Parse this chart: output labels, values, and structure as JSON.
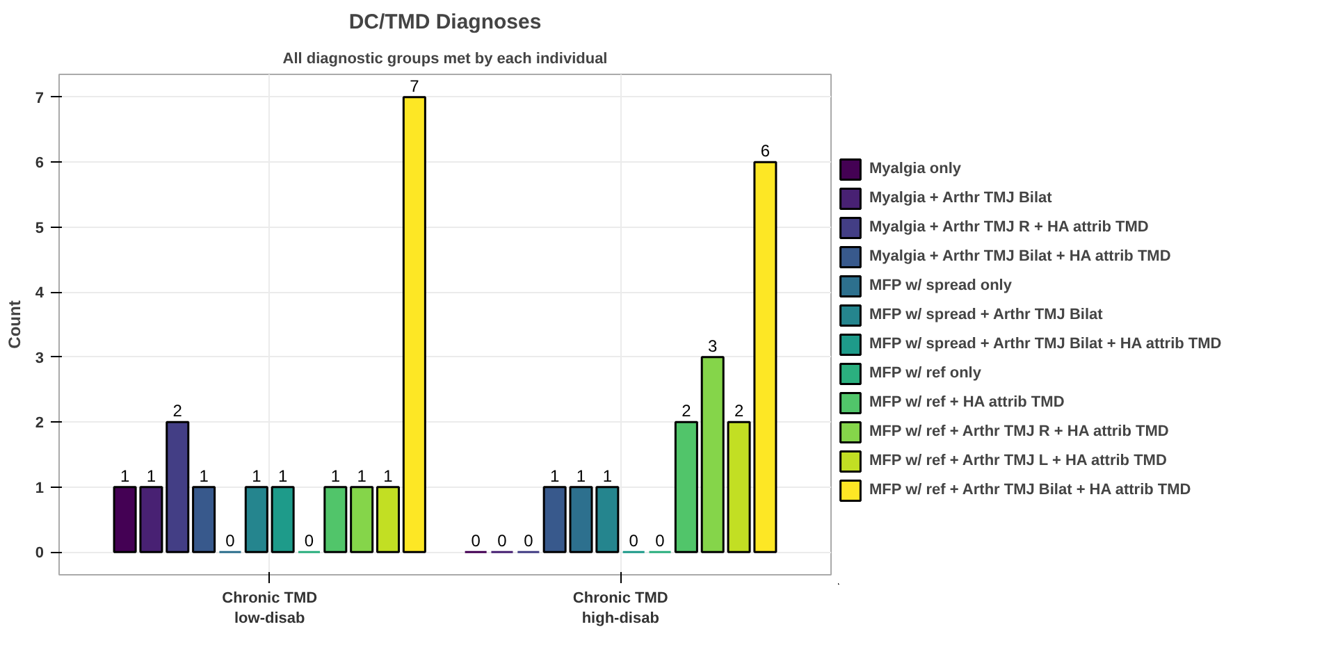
{
  "chart_data": {
    "type": "bar",
    "title": "DC/TMD Diagnoses",
    "subtitle": "All diagnostic groups met by each individual",
    "ylabel": "Count",
    "categories": [
      "Chronic TMD\nlow-disab",
      "Chronic TMD\nhigh-disab"
    ],
    "series": [
      {
        "name": "Myalgia only",
        "color": "#440154",
        "values": [
          1,
          0
        ]
      },
      {
        "name": "Myalgia + Arthr TMJ Bilat",
        "color": "#482173",
        "values": [
          1,
          0
        ]
      },
      {
        "name": "Myalgia + Arthr TMJ R + HA attrib TMD",
        "color": "#433e85",
        "values": [
          2,
          0
        ]
      },
      {
        "name": "Myalgia + Arthr TMJ Bilat + HA attrib TMD",
        "color": "#38598c",
        "values": [
          1,
          1
        ]
      },
      {
        "name": "MFP w/ spread only",
        "color": "#2d708e",
        "values": [
          0,
          1
        ]
      },
      {
        "name": "MFP w/ spread + Arthr TMJ Bilat",
        "color": "#25858e",
        "values": [
          1,
          1
        ]
      },
      {
        "name": "MFP w/ spread + Arthr TMJ Bilat + HA attrib TMD",
        "color": "#1e9b8a",
        "values": [
          1,
          0
        ]
      },
      {
        "name": "MFP w/ ref only",
        "color": "#2bb07f",
        "values": [
          0,
          0
        ]
      },
      {
        "name": "MFP w/ ref + HA attrib TMD",
        "color": "#51c56a",
        "values": [
          1,
          2
        ]
      },
      {
        "name": "MFP w/ ref + Arthr TMJ R + HA attrib TMD",
        "color": "#85d54a",
        "values": [
          1,
          3
        ]
      },
      {
        "name": "MFP w/ ref + Arthr TMJ L + HA attrib TMD",
        "color": "#c2df23",
        "values": [
          1,
          2
        ]
      },
      {
        "name": "MFP w/ ref + Arthr TMJ Bilat + HA attrib TMD",
        "color": "#fde725",
        "values": [
          7,
          6
        ]
      }
    ],
    "ylim": [
      -0.35,
      7.35
    ],
    "yticks": [
      0,
      1,
      2,
      3,
      4,
      5,
      6,
      7
    ],
    "grid": true,
    "legend": "right",
    "data_labels": true
  }
}
